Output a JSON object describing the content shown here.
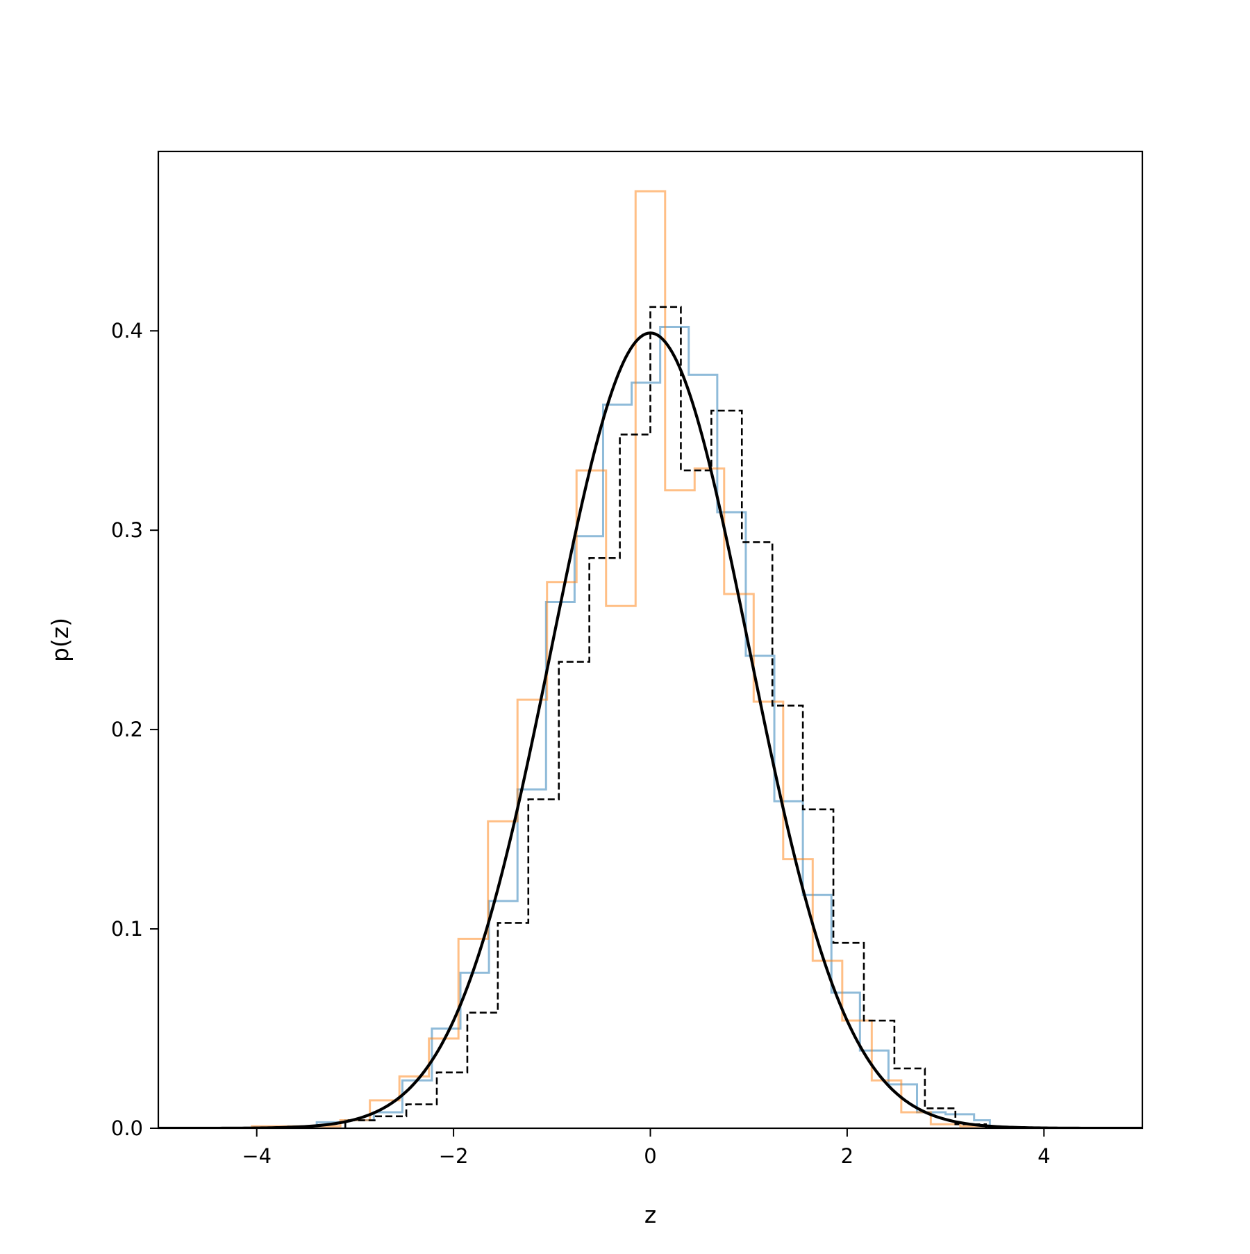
{
  "chart_data": {
    "type": "histogram",
    "title": "",
    "xlabel": "z",
    "ylabel": "p(z)",
    "xlim": [
      -5,
      5
    ],
    "ylim": [
      0,
      0.49
    ],
    "grid": false,
    "legend": "none",
    "x_ticks": [
      -4,
      -2,
      0,
      2,
      4
    ],
    "x_tick_labels": [
      "−4",
      "−2",
      "0",
      "2",
      "4"
    ],
    "y_ticks": [
      0.0,
      0.1,
      0.2,
      0.3,
      0.4
    ],
    "y_tick_labels": [
      "0.0",
      "0.1",
      "0.2",
      "0.3",
      "0.4"
    ],
    "series": [
      {
        "style": "step",
        "color": "#1f77b4",
        "opacity": 0.5,
        "edges": [
          -3.68,
          -3.39,
          -3.1,
          -2.81,
          -2.52,
          -2.22,
          -1.93,
          -1.64,
          -1.35,
          -1.06,
          -0.77,
          -0.48,
          -0.19,
          0.1,
          0.39,
          0.68,
          0.97,
          1.26,
          1.55,
          1.84,
          2.13,
          2.42,
          2.71,
          3.0,
          3.29,
          3.45
        ],
        "values": [
          0.001,
          0.003,
          0.004,
          0.008,
          0.024,
          0.05,
          0.078,
          0.114,
          0.17,
          0.264,
          0.297,
          0.363,
          0.374,
          0.402,
          0.378,
          0.309,
          0.237,
          0.164,
          0.117,
          0.068,
          0.039,
          0.022,
          0.008,
          0.007,
          0.004
        ]
      },
      {
        "style": "step",
        "color": "#ff7f0e",
        "opacity": 0.5,
        "edges": [
          -4.05,
          -3.75,
          -3.45,
          -3.15,
          -2.85,
          -2.55,
          -2.25,
          -1.95,
          -1.65,
          -1.35,
          -1.05,
          -0.75,
          -0.45,
          -0.15,
          0.15,
          0.45,
          0.75,
          1.05,
          1.35,
          1.65,
          1.95,
          2.25,
          2.55,
          2.85,
          3.15,
          3.45
        ],
        "values": [
          0.001,
          0.001,
          0.001,
          0.004,
          0.014,
          0.026,
          0.045,
          0.095,
          0.154,
          0.215,
          0.274,
          0.33,
          0.262,
          0.47,
          0.32,
          0.331,
          0.268,
          0.214,
          0.135,
          0.084,
          0.054,
          0.024,
          0.008,
          0.002,
          0.001
        ]
      },
      {
        "style": "step-dashed",
        "color": "#000000",
        "opacity": 1,
        "edges": [
          -3.1,
          -2.79,
          -2.48,
          -2.17,
          -1.86,
          -1.55,
          -1.24,
          -0.93,
          -0.62,
          -0.31,
          0.0,
          0.31,
          0.62,
          0.93,
          1.24,
          1.55,
          1.86,
          2.17,
          2.48,
          2.79,
          3.1,
          3.41
        ],
        "values": [
          0.004,
          0.006,
          0.012,
          0.028,
          0.058,
          0.103,
          0.165,
          0.234,
          0.286,
          0.348,
          0.412,
          0.33,
          0.36,
          0.294,
          0.212,
          0.16,
          0.093,
          0.054,
          0.03,
          0.01,
          0.002
        ]
      },
      {
        "style": "curve",
        "color": "#000000",
        "function": "standard normal pdf",
        "mean": 0,
        "std": 1
      }
    ]
  }
}
